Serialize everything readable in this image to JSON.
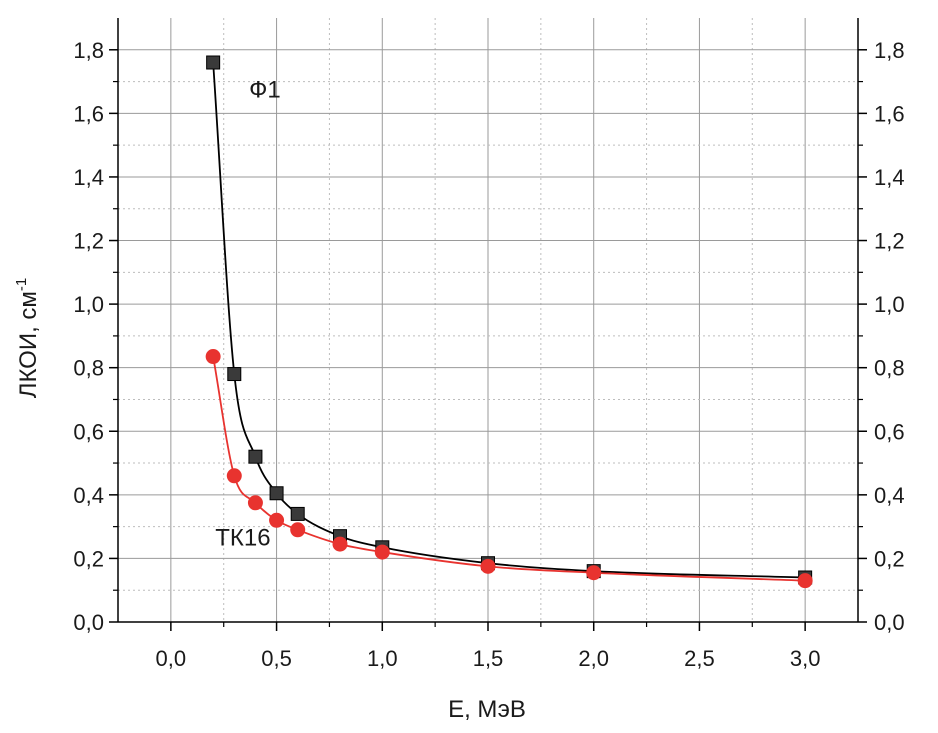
{
  "chart_data": {
    "type": "line",
    "xlabel": "E, МэВ",
    "ylabel": "ЛКОИ, см",
    "ylabel_superscript": "-1",
    "xlim": [
      -0.25,
      3.25
    ],
    "ylim": [
      0.0,
      1.9
    ],
    "x_ticks": [
      {
        "value": 0.0,
        "label": "0,0"
      },
      {
        "value": 0.5,
        "label": "0,5"
      },
      {
        "value": 1.0,
        "label": "1,0"
      },
      {
        "value": 1.5,
        "label": "1,5"
      },
      {
        "value": 2.0,
        "label": "2,0"
      },
      {
        "value": 2.5,
        "label": "2,5"
      },
      {
        "value": 3.0,
        "label": "3,0"
      }
    ],
    "y_ticks": [
      {
        "value": 0.0,
        "label": "0,0"
      },
      {
        "value": 0.2,
        "label": "0,2"
      },
      {
        "value": 0.4,
        "label": "0,4"
      },
      {
        "value": 0.6,
        "label": "0,6"
      },
      {
        "value": 0.8,
        "label": "0,8"
      },
      {
        "value": 1.0,
        "label": "1,0"
      },
      {
        "value": 1.2,
        "label": "1,2"
      },
      {
        "value": 1.4,
        "label": "1,4"
      },
      {
        "value": 1.6,
        "label": "1,6"
      },
      {
        "value": 1.8,
        "label": "1,8"
      }
    ],
    "grid": true,
    "right_axis_mirrors_left": true,
    "series": [
      {
        "name": "Ф1",
        "color": "#000000",
        "marker_fill": "#3a3a3a",
        "marker": "square",
        "x": [
          0.2,
          0.3,
          0.4,
          0.5,
          0.6,
          0.8,
          1.0,
          1.5,
          2.0,
          3.0
        ],
        "y": [
          1.76,
          0.78,
          0.52,
          0.405,
          0.34,
          0.27,
          0.235,
          0.185,
          0.16,
          0.14
        ]
      },
      {
        "name": "ТК16",
        "color": "#e8332f",
        "marker_fill": "#e8332f",
        "marker": "circle",
        "x": [
          0.2,
          0.3,
          0.4,
          0.5,
          0.6,
          0.8,
          1.0,
          1.5,
          2.0,
          3.0
        ],
        "y": [
          0.835,
          0.46,
          0.375,
          0.32,
          0.29,
          0.245,
          0.22,
          0.175,
          0.155,
          0.13
        ]
      }
    ],
    "annotations": [
      {
        "text": "Ф1",
        "x": 0.37,
        "y": 1.65
      },
      {
        "text": "ТК16",
        "x": 0.21,
        "y": 0.24
      }
    ]
  }
}
